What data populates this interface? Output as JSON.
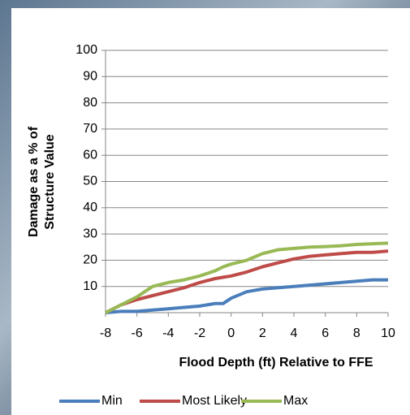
{
  "chart_data": {
    "type": "line",
    "y_label": [
      "Damage as a % of",
      "Structure Value"
    ],
    "x_label": "Flood Depth (ft) Relative to FFE",
    "x": [
      -8,
      -7,
      -6,
      -5,
      -4,
      -3,
      -2,
      -1,
      -0.5,
      0,
      1,
      2,
      3,
      4,
      5,
      6,
      7,
      8,
      9,
      10
    ],
    "series": [
      {
        "name": "Min",
        "color": "#4a7ebb",
        "values": [
          0,
          0.5,
          0.5,
          1,
          1.5,
          2,
          2.5,
          3.5,
          3.5,
          5.5,
          8,
          9,
          9.5,
          10,
          10.5,
          11,
          11.5,
          12,
          12.5,
          12.5
        ]
      },
      {
        "name": "Most Likely",
        "color": "#be4b48",
        "values": [
          0,
          3,
          5,
          6.5,
          8,
          9.5,
          11.5,
          13,
          13.5,
          14,
          15.5,
          17.5,
          19,
          20.5,
          21.5,
          22,
          22.5,
          23,
          23,
          23.5
        ]
      },
      {
        "name": "Max",
        "color": "#98b954",
        "values": [
          0,
          3,
          6,
          10,
          11.5,
          12.5,
          14,
          16,
          17.5,
          18.5,
          20,
          22.5,
          24,
          24.5,
          25,
          25.2,
          25.5,
          26,
          26.3,
          26.5
        ]
      }
    ],
    "xlim": [
      -8,
      10
    ],
    "xticks": [
      -8,
      -6,
      -4,
      -2,
      0,
      2,
      4,
      6,
      8,
      10
    ],
    "ylim": [
      0,
      100
    ],
    "yticks": [
      10,
      20,
      30,
      40,
      50,
      60,
      70,
      80,
      90,
      100
    ],
    "grid": true,
    "legend": "bottom"
  }
}
